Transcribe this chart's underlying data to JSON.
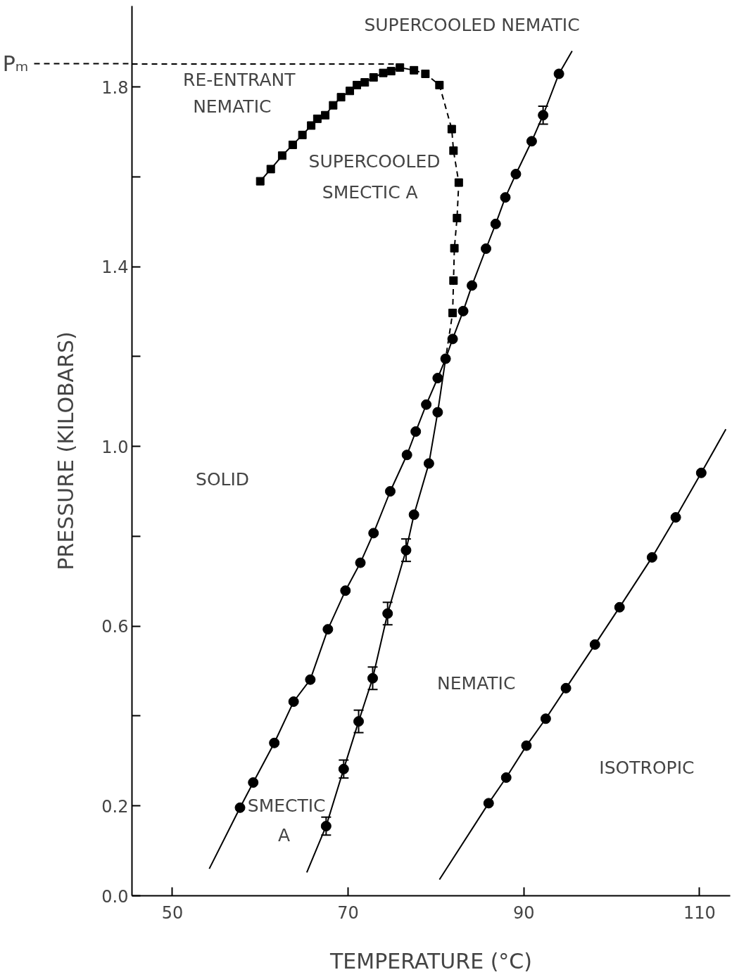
{
  "chart_data": {
    "type": "scatter",
    "xlabel": "TEMPERATURE (°C)",
    "ylabel": "PRESSURE (KILOBARS)",
    "xlim": [
      45.4,
      113.5
    ],
    "ylim": [
      0,
      1.98
    ],
    "xticks": [
      50,
      70,
      90,
      110
    ],
    "yticks": [
      {
        "value": 0,
        "label": "0.0"
      },
      0.2,
      {
        "value": 0.4,
        "label": null
      },
      0.6,
      {
        "value": 0.8,
        "label": null
      },
      {
        "value": 1.0,
        "label": "1.0"
      },
      {
        "value": 1.2,
        "label": null
      },
      1.4,
      {
        "value": 1.6,
        "label": null
      },
      1.8
    ],
    "grid": false,
    "series": [
      {
        "type": "line",
        "marker": "none",
        "line_style": "solid",
        "color": "#000000",
        "x": [
          54.2,
          57.7,
          59.2,
          61.6,
          63.8,
          65.7,
          67.7,
          69.7,
          71.4,
          72.9,
          74.8,
          76.7,
          77.7,
          78.9,
          80.2,
          81.1,
          81.9,
          83.1,
          84.1,
          85.7,
          86.8,
          87.9,
          89.1,
          90.9,
          92.2,
          94.0,
          95.5
        ],
        "values": [
          0.06,
          0.196,
          0.252,
          0.34,
          0.432,
          0.481,
          0.593,
          0.679,
          0.741,
          0.807,
          0.9,
          0.981,
          1.033,
          1.093,
          1.152,
          1.195,
          1.239,
          1.301,
          1.358,
          1.44,
          1.495,
          1.554,
          1.606,
          1.679,
          1.737,
          1.829,
          1.88
        ]
      },
      {
        "marker": "circle",
        "color": "#000000",
        "x": [
          57.7,
          59.2,
          61.6,
          63.8,
          65.7,
          67.7,
          69.7,
          71.4,
          72.9,
          74.8,
          76.7,
          77.7,
          78.9,
          80.2,
          81.1,
          81.9,
          83.1,
          84.1,
          85.7,
          86.8,
          87.9,
          89.1,
          90.9,
          92.2,
          94.0
        ],
        "values": [
          0.196,
          0.252,
          0.34,
          0.432,
          0.481,
          0.593,
          0.679,
          0.741,
          0.807,
          0.9,
          0.981,
          1.033,
          1.093,
          1.152,
          1.195,
          1.239,
          1.301,
          1.358,
          1.44,
          1.495,
          1.554,
          1.606,
          1.679,
          1.737,
          1.829
        ],
        "errors": [
          null,
          null,
          null,
          null,
          null,
          null,
          null,
          null,
          null,
          null,
          null,
          null,
          null,
          null,
          null,
          null,
          null,
          null,
          null,
          null,
          null,
          null,
          null,
          0.02,
          null
        ]
      },
      {
        "type": "line",
        "marker": "none",
        "line_style": "solid",
        "color": "#000000",
        "x": [
          65.3,
          67.5,
          69.5,
          71.2,
          72.8,
          74.5,
          76.6,
          77.5,
          79.2,
          80.2,
          81.1
        ],
        "values": [
          0.052,
          0.155,
          0.282,
          0.388,
          0.484,
          0.628,
          0.769,
          0.848,
          0.962,
          1.076,
          1.195
        ]
      },
      {
        "marker": "circle",
        "color": "#000000",
        "x": [
          67.5,
          69.5,
          71.2,
          72.8,
          74.5,
          76.6,
          77.5,
          79.2,
          80.2
        ],
        "values": [
          0.155,
          0.282,
          0.388,
          0.484,
          0.628,
          0.769,
          0.848,
          0.962,
          1.076
        ],
        "errors": [
          0.02,
          0.02,
          0.025,
          0.025,
          0.025,
          0.025,
          null,
          null,
          null
        ]
      },
      {
        "type": "line",
        "marker": "none",
        "line_style": "solid",
        "color": "#000000",
        "x": [
          60.0,
          61.2,
          62.5,
          63.7,
          64.8,
          65.8,
          66.5,
          67.4,
          68.3,
          69.2,
          70.2,
          71.0,
          71.9,
          72.9,
          74.0,
          74.9,
          75.9,
          77.5
        ],
        "values": [
          1.59,
          1.617,
          1.647,
          1.671,
          1.693,
          1.714,
          1.729,
          1.737,
          1.759,
          1.777,
          1.791,
          1.804,
          1.81,
          1.821,
          1.831,
          1.835,
          1.843,
          1.837
        ]
      },
      {
        "type": "line",
        "marker": "none",
        "line_style": "dashed",
        "color": "#000000",
        "x": [
          77.5,
          78.8,
          80.4,
          81.8,
          82.0,
          82.6,
          82.4,
          82.1,
          82.0,
          81.9,
          81.1
        ],
        "values": [
          1.837,
          1.829,
          1.804,
          1.706,
          1.658,
          1.587,
          1.508,
          1.441,
          1.369,
          1.297,
          1.195
        ]
      },
      {
        "marker": "square",
        "color": "#000000",
        "x": [
          60.0,
          61.2,
          62.5,
          63.7,
          64.8,
          65.8,
          66.5,
          67.4,
          68.3,
          69.2,
          70.2,
          71.0,
          71.9,
          72.9,
          74.0,
          74.9,
          75.9,
          77.5,
          78.8,
          80.4,
          81.8,
          82.0,
          82.6,
          82.4,
          82.1,
          82.0,
          81.9
        ],
        "values": [
          1.59,
          1.617,
          1.647,
          1.671,
          1.693,
          1.714,
          1.729,
          1.737,
          1.759,
          1.777,
          1.791,
          1.804,
          1.81,
          1.821,
          1.831,
          1.835,
          1.843,
          1.837,
          1.829,
          1.804,
          1.706,
          1.658,
          1.587,
          1.508,
          1.441,
          1.369,
          1.297
        ]
      },
      {
        "type": "line",
        "marker": "none",
        "line_style": "solid",
        "color": "#000000",
        "x": [
          80.4,
          86.0,
          88.0,
          90.3,
          92.5,
          94.8,
          98.1,
          100.9,
          104.6,
          107.3,
          110.2,
          113.0
        ],
        "values": [
          0.036,
          0.206,
          0.263,
          0.334,
          0.394,
          0.462,
          0.559,
          0.642,
          0.753,
          0.842,
          0.941,
          1.038
        ]
      },
      {
        "marker": "circle",
        "color": "#000000",
        "x": [
          86.0,
          88.0,
          90.3,
          92.5,
          94.8,
          98.1,
          100.9,
          104.6,
          107.3,
          110.2
        ],
        "values": [
          0.206,
          0.263,
          0.334,
          0.394,
          0.462,
          0.559,
          0.642,
          0.753,
          0.842,
          0.941
        ]
      }
    ],
    "ref_lines": [
      {
        "axis": "y",
        "value": 1.851,
        "label": "Pₘ",
        "line_style": "dashed",
        "color": "#000000"
      }
    ],
    "annotations": [
      "SUPERCOOLED NEMATIC",
      "RE-ENTRANT",
      "NEMATIC",
      "SUPERCOOLED",
      "SMECTIC A",
      "SOLID",
      "NEMATIC",
      "ISOTROPIC",
      "SMECTIC",
      "A"
    ]
  }
}
